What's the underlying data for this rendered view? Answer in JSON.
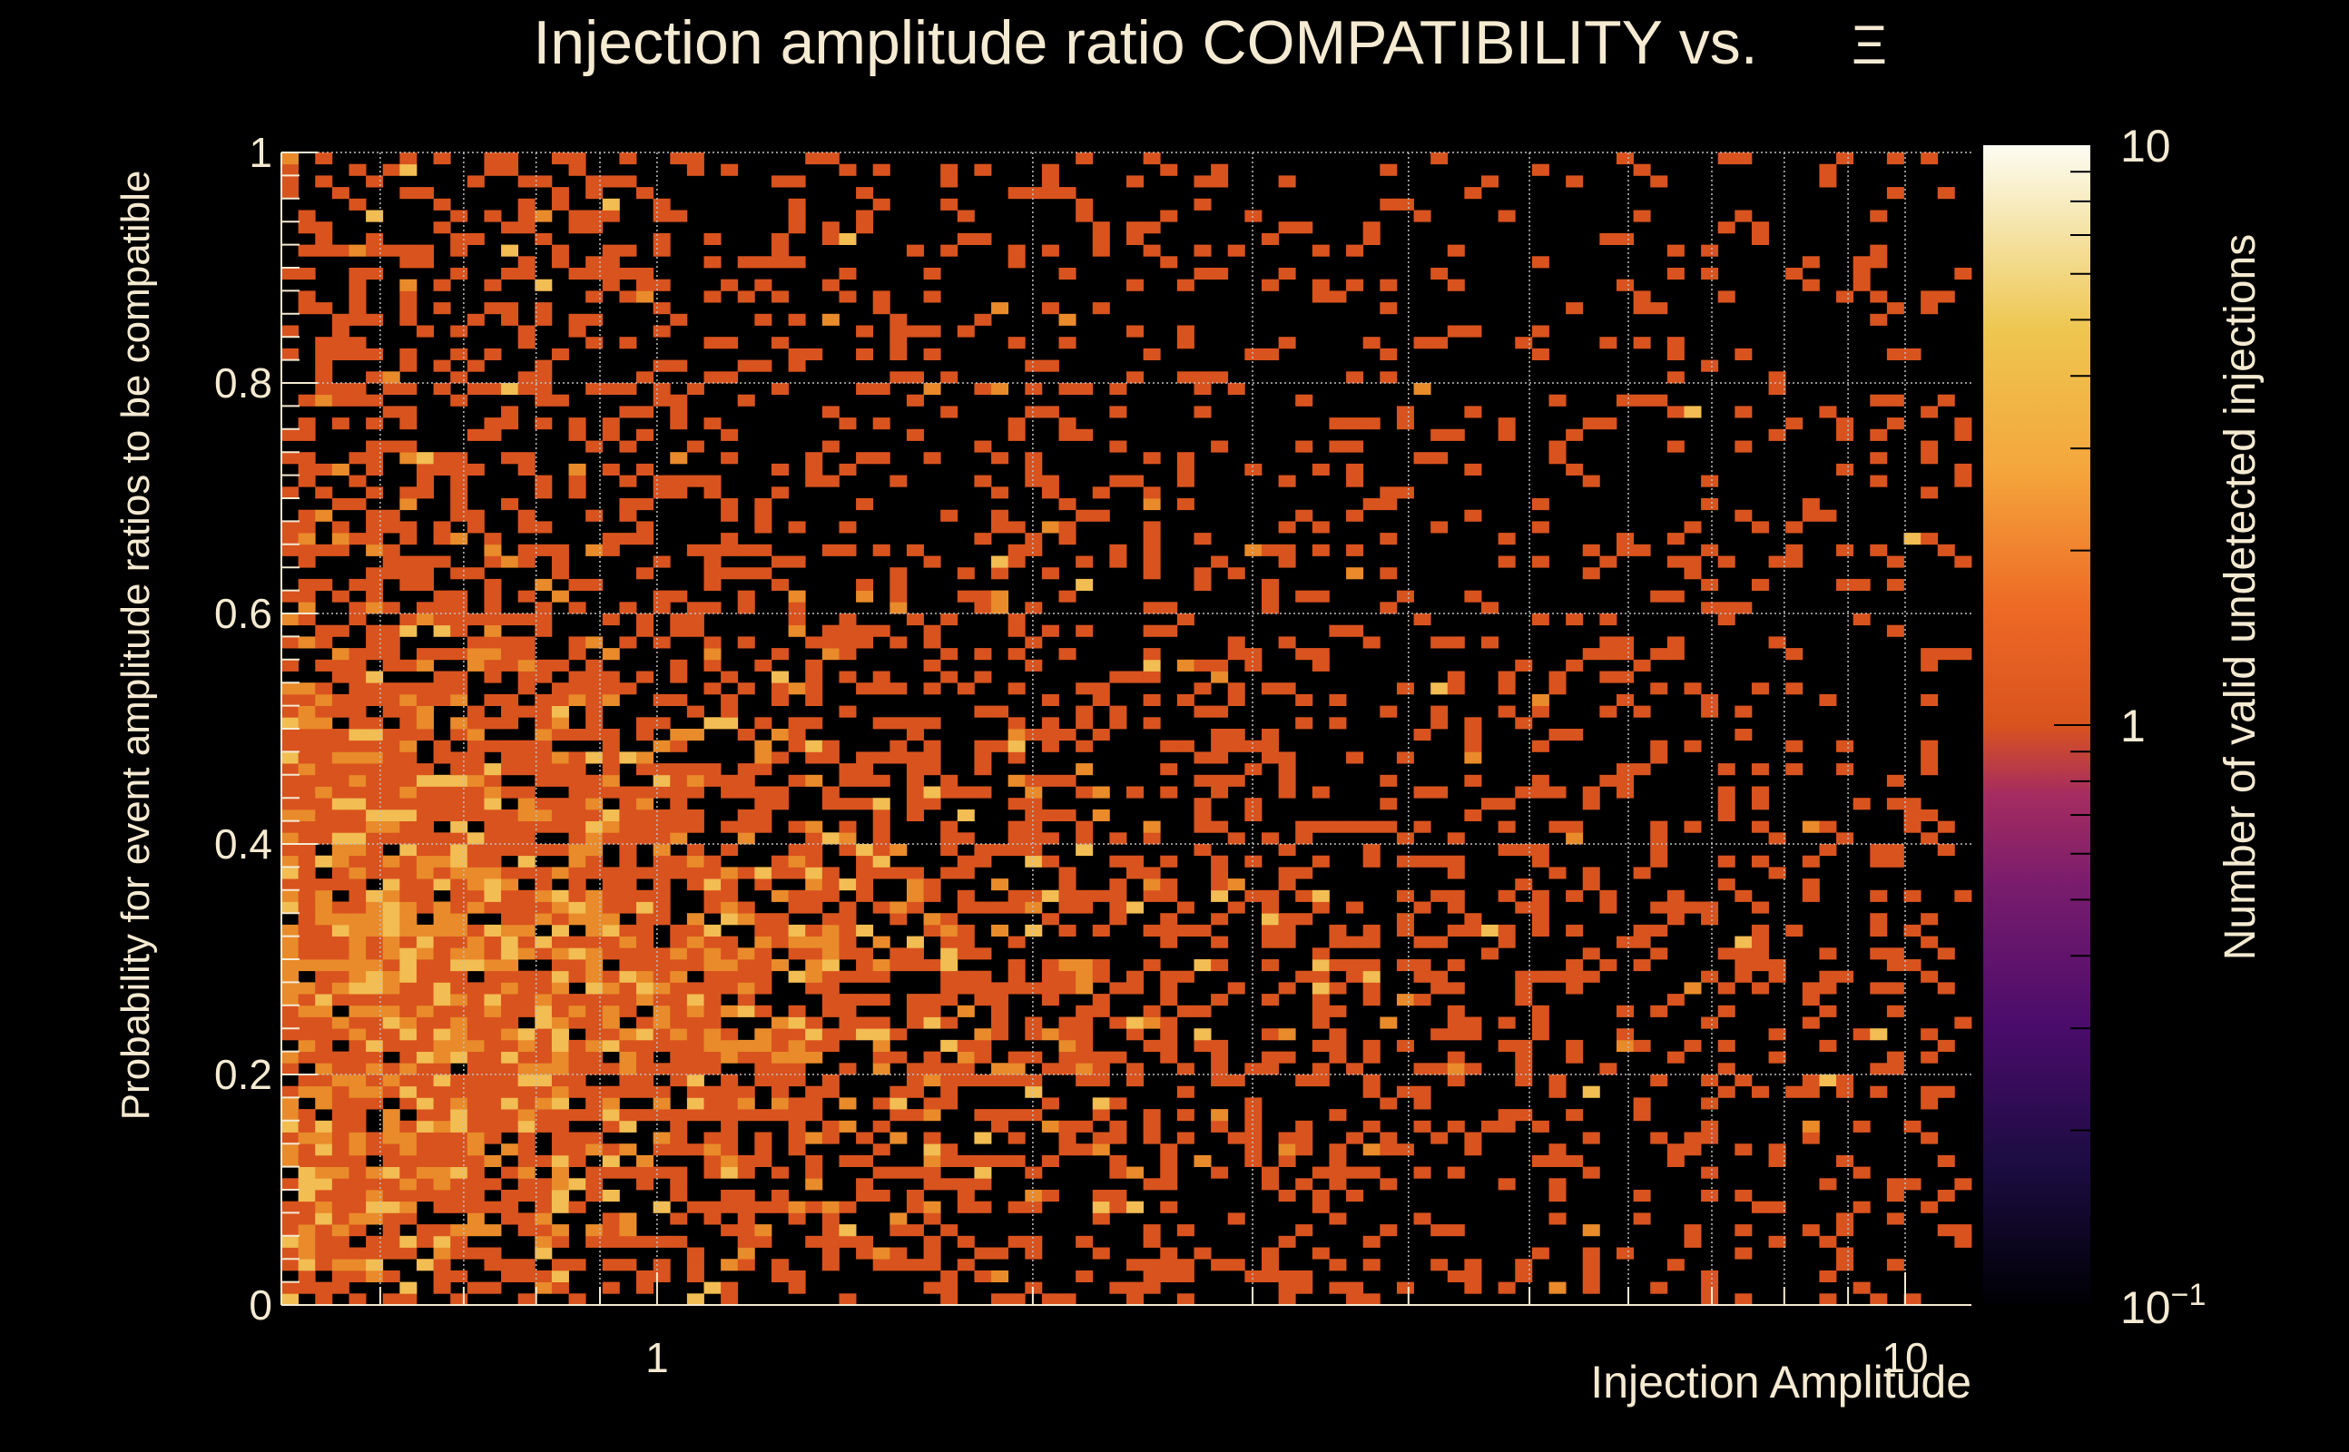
{
  "chart_data": {
    "type": "heatmap",
    "title": "Injection amplitude ratio COMPATIBILITY vs.",
    "title_symbol": "Ξ",
    "xlabel": "Injection Amplitude",
    "ylabel": "Probability for event amplitude ratios to be compatible",
    "zlabel": "Number of valid undetected injections",
    "x_scale": "log",
    "x_range": [
      0.5,
      11.3
    ],
    "y_range": [
      0,
      1
    ],
    "z_scale": "log",
    "z_range": [
      0.1,
      10
    ],
    "x_tick_labels": [
      "1",
      "10"
    ],
    "x_tick_values": [
      1,
      10
    ],
    "y_tick_labels": [
      "0",
      "0.2",
      "0.4",
      "0.6",
      "0.8",
      "1"
    ],
    "y_tick_values": [
      0,
      0.2,
      0.4,
      0.6,
      0.8,
      1
    ],
    "z_tick_labels": [
      "10",
      "1"
    ],
    "z_tick_values": [
      10,
      1
    ],
    "z_min_label_base": "10",
    "z_min_label_exp": "−1",
    "grid": true,
    "n_xbins": 100,
    "n_ybins": 100,
    "density_description": "counts of 1-3 per bin, densest at low amplitude (0.5-2) and probability 0.1-0.5, sparse at high amplitude and high probability",
    "colors": {
      "background": "#000000",
      "text": "#f5ead2",
      "grid": "#bfbfbf",
      "palette": [
        "#000004",
        "#1b0c41",
        "#4a0c6b",
        "#781c6d",
        "#a52c60",
        "#cf4446",
        "#d9531e",
        "#ed6925",
        "#f4a63c",
        "#eec64f",
        "#f6e8b5",
        "#fcfcf2"
      ]
    }
  }
}
